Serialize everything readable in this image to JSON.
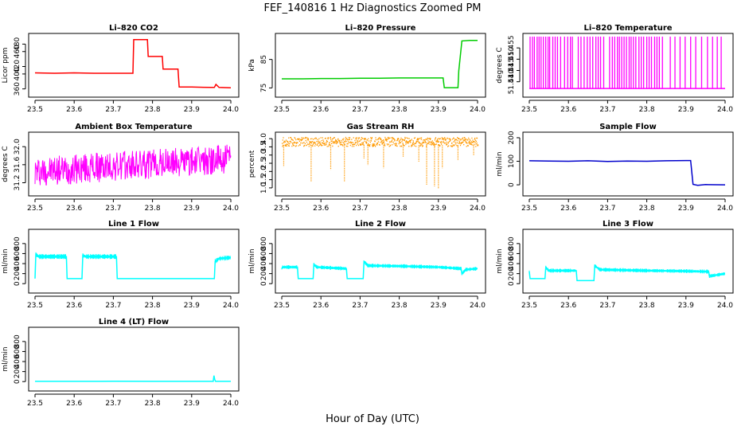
{
  "figure": {
    "title": "FEF_140816  1 Hz Diagnostics Zoomed PM",
    "xlabel": "Hour of Day (UTC)"
  },
  "chart_data": [
    {
      "type": "line",
      "title": "Li–820 CO2",
      "ylabel": "Licor ppm",
      "color": "#ff0000",
      "xlim": [
        23.5,
        24.0
      ],
      "ylim": [
        355,
        500
      ],
      "x_ticks": [
        "23.5",
        "23.6",
        "23.7",
        "23.8",
        "23.9",
        "24.0"
      ],
      "y_ticks": [
        {
          "value": 360,
          "label": "360"
        },
        {
          "value": 400,
          "label": "400"
        },
        {
          "value": 420,
          "label": "420"
        },
        {
          "value": 460,
          "label": "460"
        },
        {
          "value": 480,
          "label": "480"
        }
      ],
      "series": [
        {
          "x": [
            23.5,
            23.55,
            23.6,
            23.65,
            23.7,
            23.75,
            23.752,
            23.77,
            23.787,
            23.789,
            23.82,
            23.825,
            23.827,
            23.86,
            23.865,
            23.868,
            23.9,
            23.95,
            23.958,
            23.962,
            23.97,
            24.0
          ],
          "y": [
            403,
            402,
            403,
            402,
            402,
            402,
            492,
            492,
            492,
            447,
            447,
            447,
            413,
            413,
            413,
            365,
            365,
            364,
            364,
            372,
            364,
            363
          ]
        }
      ]
    },
    {
      "type": "line",
      "title": "Li–820 Pressure",
      "ylabel": "kPa",
      "color": "#00cc00",
      "xlim": [
        23.5,
        24.0
      ],
      "ylim": [
        74,
        93
      ],
      "x_ticks": [
        "23.5",
        "23.6",
        "23.7",
        "23.8",
        "23.9",
        "24.0"
      ],
      "y_ticks": [
        {
          "value": 75,
          "label": "75"
        },
        {
          "value": 85,
          "label": "85"
        }
      ],
      "series": [
        {
          "x": [
            23.5,
            23.55,
            23.6,
            23.65,
            23.7,
            23.75,
            23.8,
            23.85,
            23.9,
            23.912,
            23.915,
            23.93,
            23.95,
            23.952,
            23.96,
            23.98,
            24.0
          ],
          "y": [
            78.2,
            78.2,
            78.3,
            78.3,
            78.4,
            78.4,
            78.5,
            78.5,
            78.5,
            78.5,
            75.1,
            75.1,
            75.1,
            81,
            91.5,
            91.7,
            91.7
          ]
        }
      ]
    },
    {
      "type": "line",
      "title": "Li–820 Temperature",
      "ylabel": "degrees C",
      "color": "#ff00ff",
      "xlim": [
        23.5,
        24.0
      ],
      "ylim": [
        51.436,
        51.46
      ],
      "x_ticks": [
        "23.5",
        "23.6",
        "23.7",
        "23.8",
        "23.9",
        "24.0"
      ],
      "y_ticks": [
        {
          "value": 51.44,
          "label": "51.440"
        },
        {
          "value": 51.445,
          "label": "51.445"
        },
        {
          "value": 51.45,
          "label": "51.450"
        },
        {
          "value": 51.455,
          "label": "51.455"
        }
      ],
      "note_low": 51.437,
      "note_high": 51.46,
      "spike_x": [
        23.502,
        23.508,
        23.513,
        23.52,
        23.525,
        23.53,
        23.536,
        23.542,
        23.548,
        23.552,
        23.56,
        23.566,
        23.572,
        23.58,
        23.59,
        23.598,
        23.605,
        23.61,
        23.625,
        23.632,
        23.64,
        23.648,
        23.655,
        23.662,
        23.67,
        23.676,
        23.682,
        23.69,
        23.705,
        23.712,
        23.718,
        23.725,
        23.73,
        23.736,
        23.742,
        23.748,
        23.755,
        23.76,
        23.766,
        23.772,
        23.78,
        23.786,
        23.792,
        23.8,
        23.806,
        23.812,
        23.82,
        23.826,
        23.832,
        23.84,
        23.86,
        23.872,
        23.885,
        23.898,
        23.912,
        23.925,
        23.94,
        23.955,
        23.968,
        23.98,
        23.99
      ]
    },
    {
      "type": "line",
      "title": "Ambient Box Temperature",
      "ylabel": "degrees C",
      "color": "#ff00ff",
      "xlim": [
        23.5,
        24.0
      ],
      "ylim": [
        31.05,
        32.25
      ],
      "x_ticks": [
        "23.5",
        "23.6",
        "23.7",
        "23.8",
        "23.9",
        "24.0"
      ],
      "y_ticks": [
        {
          "value": 31.2,
          "label": "31.2"
        },
        {
          "value": 31.6,
          "label": "31.6"
        },
        {
          "value": 32.0,
          "label": "32.0"
        }
      ],
      "noise": {
        "start": 31.45,
        "end": 31.72,
        "amplitude": 0.33
      }
    },
    {
      "type": "scatter",
      "title": "Gas Stream RH",
      "ylabel": "percent",
      "color": "#ff9900",
      "xlim": [
        23.5,
        24.0
      ],
      "ylim": [
        0.9,
        4.2
      ],
      "x_ticks": [
        "23.5",
        "23.6",
        "23.7",
        "23.8",
        "23.9",
        "24.0"
      ],
      "y_ticks": [
        {
          "value": 1.0,
          "label": "1.0"
        },
        {
          "value": 1.5,
          "label": "1.5"
        },
        {
          "value": 2.0,
          "label": "2.0"
        },
        {
          "value": 2.5,
          "label": "2.5"
        },
        {
          "value": 3.0,
          "label": "3.0"
        },
        {
          "value": 3.5,
          "label": "3.5"
        },
        {
          "value": 4.0,
          "label": "4.0"
        }
      ],
      "baseline": 3.8,
      "dips": [
        [
          23.505,
          2.3
        ],
        [
          23.575,
          1.4
        ],
        [
          23.625,
          2.1
        ],
        [
          23.66,
          1.4
        ],
        [
          23.71,
          2.8
        ],
        [
          23.72,
          2.4
        ],
        [
          23.76,
          2.2
        ],
        [
          23.81,
          2.9
        ],
        [
          23.85,
          2.6
        ],
        [
          23.87,
          1.2
        ],
        [
          23.89,
          1.1
        ],
        [
          23.9,
          0.95
        ],
        [
          23.91,
          2.2
        ],
        [
          23.95,
          2.7
        ],
        [
          23.99,
          3.0
        ]
      ]
    },
    {
      "type": "line",
      "title": "Sample Flow",
      "ylabel": "ml/min",
      "color": "#0000cc",
      "xlim": [
        23.5,
        24.0
      ],
      "ylim": [
        -20,
        210
      ],
      "x_ticks": [
        "23.5",
        "23.6",
        "23.7",
        "23.8",
        "23.9",
        "24.0"
      ],
      "y_ticks": [
        {
          "value": 0,
          "label": "0"
        },
        {
          "value": 100,
          "label": "100"
        },
        {
          "value": 200,
          "label": "200"
        }
      ],
      "series": [
        {
          "x": [
            23.5,
            23.55,
            23.6,
            23.65,
            23.7,
            23.75,
            23.8,
            23.85,
            23.9,
            23.912,
            23.918,
            23.93,
            23.95,
            24.0
          ],
          "y": [
            102,
            101,
            100,
            102,
            99,
            101,
            100,
            102,
            103,
            103,
            2,
            -2,
            1,
            0
          ]
        }
      ]
    },
    {
      "type": "line",
      "title": "Line 1 Flow",
      "ylabel": "ml/min",
      "color": "#00ffff",
      "xlim": [
        23.5,
        24.0
      ],
      "ylim": [
        -60,
        1020
      ],
      "x_ticks": [
        "23.5",
        "23.6",
        "23.7",
        "23.8",
        "23.9",
        "24.0"
      ],
      "y_ticks": [
        {
          "value": 0,
          "label": "0"
        },
        {
          "value": 200,
          "label": "200"
        },
        {
          "value": 400,
          "label": "400"
        },
        {
          "value": 600,
          "label": "600"
        },
        {
          "value": 800,
          "label": "800"
        }
      ],
      "series": [
        {
          "x": [
            23.5,
            23.502,
            23.51,
            23.58,
            23.582,
            23.62,
            23.622,
            23.63,
            23.708,
            23.71,
            23.958,
            23.96,
            23.97,
            24.0
          ],
          "y": [
            100,
            580,
            540,
            540,
            100,
            100,
            560,
            540,
            540,
            100,
            100,
            440,
            500,
            520
          ]
        }
      ],
      "band": 100
    },
    {
      "type": "line",
      "title": "Line 2 Flow",
      "ylabel": "ml/min",
      "color": "#00ffff",
      "xlim": [
        23.5,
        24.0
      ],
      "ylim": [
        -60,
        1020
      ],
      "x_ticks": [
        "23.5",
        "23.6",
        "23.7",
        "23.8",
        "23.9",
        "24.0"
      ],
      "y_ticks": [
        {
          "value": 0,
          "label": "0"
        },
        {
          "value": 200,
          "label": "200"
        },
        {
          "value": 400,
          "label": "400"
        },
        {
          "value": 600,
          "label": "600"
        },
        {
          "value": 800,
          "label": "800"
        }
      ],
      "series": [
        {
          "x": [
            23.5,
            23.502,
            23.54,
            23.542,
            23.58,
            23.582,
            23.59,
            23.665,
            23.667,
            23.708,
            23.71,
            23.72,
            23.8,
            23.9,
            23.958,
            23.96,
            23.97,
            24.0
          ],
          "y": [
            300,
            330,
            330,
            100,
            100,
            380,
            330,
            300,
            100,
            100,
            440,
            360,
            350,
            330,
            300,
            200,
            280,
            300
          ]
        }
      ],
      "band": 80
    },
    {
      "type": "line",
      "title": "Line 3 Flow",
      "ylabel": "ml/min",
      "color": "#00ffff",
      "xlim": [
        23.5,
        24.0
      ],
      "ylim": [
        -60,
        1020
      ],
      "x_ticks": [
        "23.5",
        "23.6",
        "23.7",
        "23.8",
        "23.9",
        "24.0"
      ],
      "y_ticks": [
        {
          "value": 0,
          "label": "0"
        },
        {
          "value": 200,
          "label": "200"
        },
        {
          "value": 400,
          "label": "400"
        },
        {
          "value": 600,
          "label": "600"
        },
        {
          "value": 800,
          "label": "800"
        }
      ],
      "series": [
        {
          "x": [
            23.5,
            23.502,
            23.505,
            23.54,
            23.542,
            23.55,
            23.62,
            23.622,
            23.665,
            23.667,
            23.68,
            23.8,
            23.9,
            23.958,
            23.96,
            24.0
          ],
          "y": [
            240,
            100,
            100,
            100,
            320,
            260,
            260,
            60,
            60,
            360,
            280,
            260,
            250,
            240,
            150,
            200
          ]
        }
      ],
      "band": 80
    },
    {
      "type": "line",
      "title": "Line 4 (LT) Flow",
      "ylabel": "ml/min",
      "color": "#00ffff",
      "xlim": [
        23.5,
        24.0
      ],
      "ylim": [
        -60,
        1020
      ],
      "x_ticks": [
        "23.5",
        "23.6",
        "23.7",
        "23.8",
        "23.9",
        "24.0"
      ],
      "y_ticks": [
        {
          "value": 0,
          "label": "0"
        },
        {
          "value": 200,
          "label": "200"
        },
        {
          "value": 400,
          "label": "400"
        },
        {
          "value": 600,
          "label": "600"
        },
        {
          "value": 800,
          "label": "800"
        }
      ],
      "series": [
        {
          "x": [
            23.5,
            23.6,
            23.7,
            23.8,
            23.9,
            23.955,
            23.957,
            23.959,
            23.961,
            24.0
          ],
          "y": [
            5,
            5,
            6,
            5,
            5,
            5,
            120,
            40,
            5,
            5
          ]
        }
      ],
      "band": 0
    }
  ]
}
